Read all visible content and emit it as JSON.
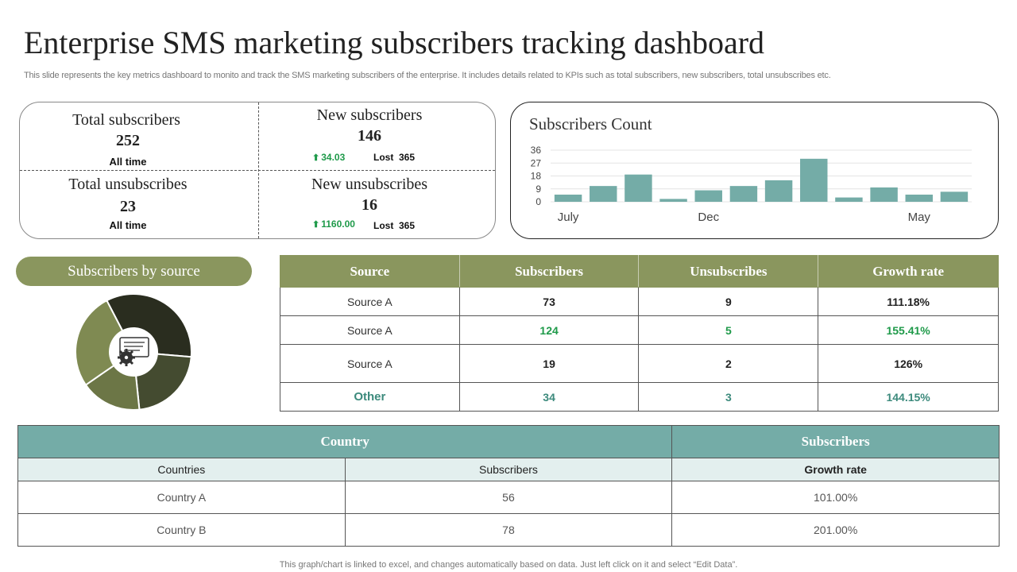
{
  "header": {
    "title": "Enterprise SMS marketing subscribers tracking dashboard",
    "subtitle": "This slide represents the key metrics dashboard to monito and track the SMS  marketing subscribers of the enterprise. It includes details related to KPIs such as total subscribers, new subscribers, total unsubscribes etc."
  },
  "kpis": {
    "total_subscribers": {
      "label": "Total subscribers",
      "value": "252",
      "note": "All time"
    },
    "new_subscribers": {
      "label": "New subscribers",
      "value": "146",
      "delta": "34.03",
      "lost": "Lost  365"
    },
    "total_unsubscribes": {
      "label": "Total unsubscribes",
      "value": "23",
      "note": "All time"
    },
    "new_unsubscribes": {
      "label": "New unsubscribes",
      "value": "16",
      "delta": "1160.00",
      "lost": "Lost  365"
    }
  },
  "chart_data": {
    "type": "bar",
    "title": "Subscribers Count",
    "values": [
      5,
      11,
      19,
      2,
      8,
      11,
      15,
      30,
      3,
      10,
      5,
      7
    ],
    "x_tick_labels": [
      "July",
      "Dec",
      "May"
    ],
    "y_ticks": [
      "36",
      "27",
      "18",
      "9",
      "0"
    ],
    "ylim": [
      0,
      36
    ],
    "grid": true,
    "color": "#74aca7"
  },
  "source_section": {
    "title": "Subscribers by source",
    "donut_colors": [
      "#2a2d1f",
      "#444b30",
      "#6c7646",
      "#7f8a52"
    ],
    "donut_shares": [
      0.34,
      0.22,
      0.17,
      0.27
    ]
  },
  "source_table": {
    "headers": [
      "Source",
      "Subscribers",
      "Unsubscribes",
      "Growth rate"
    ],
    "rows": [
      [
        "Source A",
        "73",
        "9",
        "111.18%"
      ],
      [
        "Source A",
        "124",
        "5",
        "155.41%"
      ],
      [
        "Source A",
        "19",
        "2",
        "126%"
      ],
      [
        "Other",
        "34",
        "3",
        "144.15%"
      ]
    ]
  },
  "country_table": {
    "group_headers": [
      "Country",
      "Subscribers"
    ],
    "sub_headers": [
      "Countries",
      "Subscribers",
      "Growth rate"
    ],
    "rows": [
      [
        "Country A",
        "56",
        "101.00%"
      ],
      [
        "Country B",
        "78",
        "201.00%"
      ]
    ]
  },
  "footer": "This graph/chart is linked to excel,  and changes automatically based on data. Just left click on it and select “Edit Data”."
}
